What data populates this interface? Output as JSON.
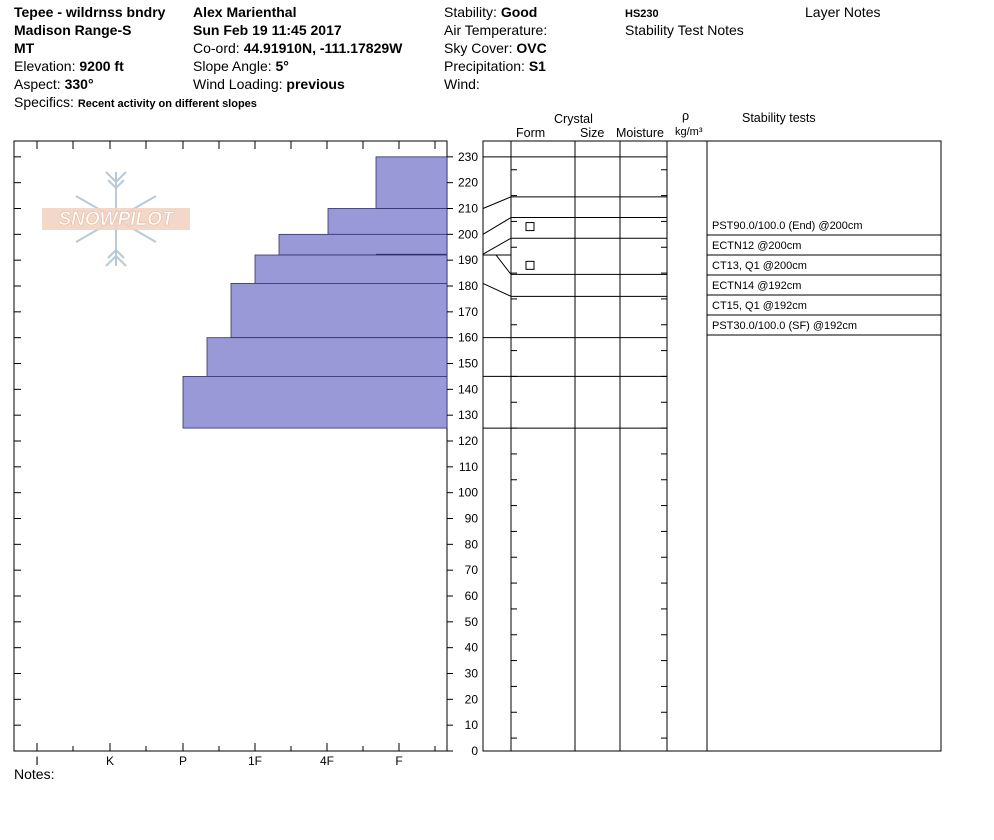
{
  "header": {
    "col1": {
      "location": "Tepee - wildrnss bndry",
      "range": "Madison Range-S",
      "state": "MT",
      "elevation_label": "Elevation:",
      "elevation_value": "9200 ft",
      "aspect_label": "Aspect:",
      "aspect_value": "330°",
      "specifics_label": "Specifics:",
      "specifics_value": "Recent activity on different slopes"
    },
    "col2": {
      "observer": "Alex Marienthal",
      "datetime": "Sun Feb 19 11:45 2017",
      "coord_label": "Co-ord:",
      "coord_value": "44.91910N, -111.17829W",
      "slope_label": "Slope Angle:",
      "slope_value": "5°",
      "wind_loading_label": "Wind Loading:",
      "wind_loading_value": "previous"
    },
    "col3": {
      "stability_label": "Stability:",
      "stability_value": "Good",
      "air_temp_label": "Air Temperature:",
      "sky_label": "Sky Cover:",
      "sky_value": "OVC",
      "precip_label": "Precipitation:",
      "precip_value": "S1",
      "wind_label": "Wind:"
    },
    "col4": {
      "hs": "HS230",
      "stability_notes": "Stability Test Notes"
    },
    "col5": {
      "layer_notes": "Layer Notes"
    }
  },
  "columns": {
    "crystal": "Crystal",
    "form": "Form",
    "size": "Size",
    "moisture": "Moisture",
    "rho": "ρ",
    "density_unit": "kg/m³",
    "stability_tests": "Stability tests"
  },
  "logo_text": "SNOWPILOT",
  "notes_label": "Notes:",
  "chart_data": {
    "type": "bar",
    "orientation": "horizontal",
    "y_axis": {
      "min": 0,
      "max": 230,
      "tick_step": 10
    },
    "x_axis": {
      "ticks": [
        "I",
        "K",
        "P",
        "1F",
        "4F",
        "F"
      ]
    },
    "layers": [
      {
        "top": 230,
        "bottom": 210,
        "hardness": "F"
      },
      {
        "top": 210,
        "bottom": 200,
        "hardness": "4F"
      },
      {
        "top": 200,
        "bottom": 192,
        "hardness": "1F+"
      },
      {
        "top": 192,
        "bottom": 181,
        "hardness": "1F"
      },
      {
        "top": 181,
        "bottom": 160,
        "hardness": "P+"
      },
      {
        "top": 160,
        "bottom": 145,
        "hardness": "P-"
      },
      {
        "top": 145,
        "bottom": 125,
        "hardness": "P"
      }
    ],
    "form_markers": [
      203,
      188
    ],
    "stability_tests": [
      "PST90.0/100.0 (End) @200cm",
      "ECTN12 @200cm",
      "CT13, Q1 @200cm",
      "ECTN14 @192cm",
      "CT15, Q1 @192cm",
      "PST30.0/100.0 (SF) @192cm"
    ]
  },
  "colors": {
    "bar_fill": "#9a99d8",
    "bar_stroke": "#2f2f6e",
    "logo": "#f0cdb8",
    "logo_flake": "#b9c9d6"
  }
}
